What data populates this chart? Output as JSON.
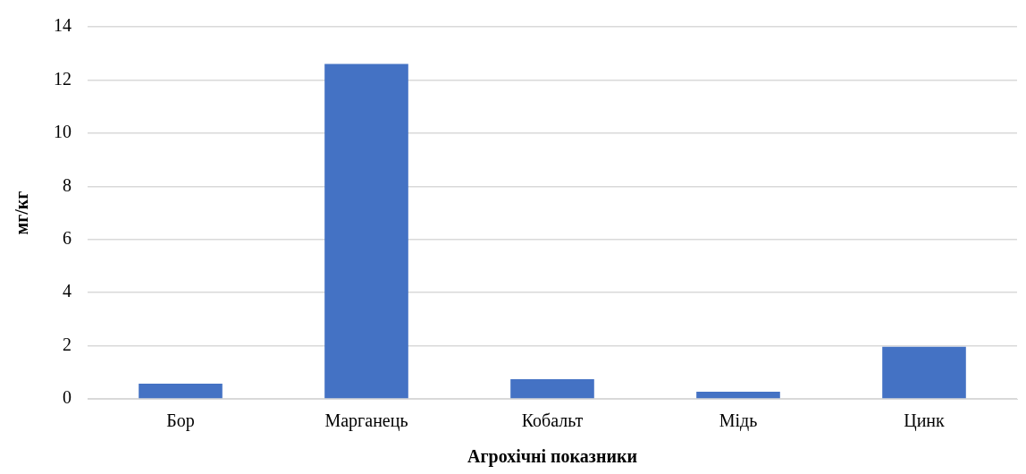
{
  "chart_data": {
    "type": "bar",
    "xlabel": "Агрохічні показники",
    "ylabel": "мг/кг",
    "categories": [
      "Бор",
      "Марганець",
      "Кобальт",
      "Мідь",
      "Цинк"
    ],
    "values": [
      0.57,
      12.6,
      0.74,
      0.27,
      1.96
    ],
    "color": "#4472c4",
    "ylim": [
      0,
      14
    ],
    "yticks": [
      0,
      2,
      4,
      6,
      8,
      10,
      12,
      14
    ],
    "grid": "y"
  }
}
